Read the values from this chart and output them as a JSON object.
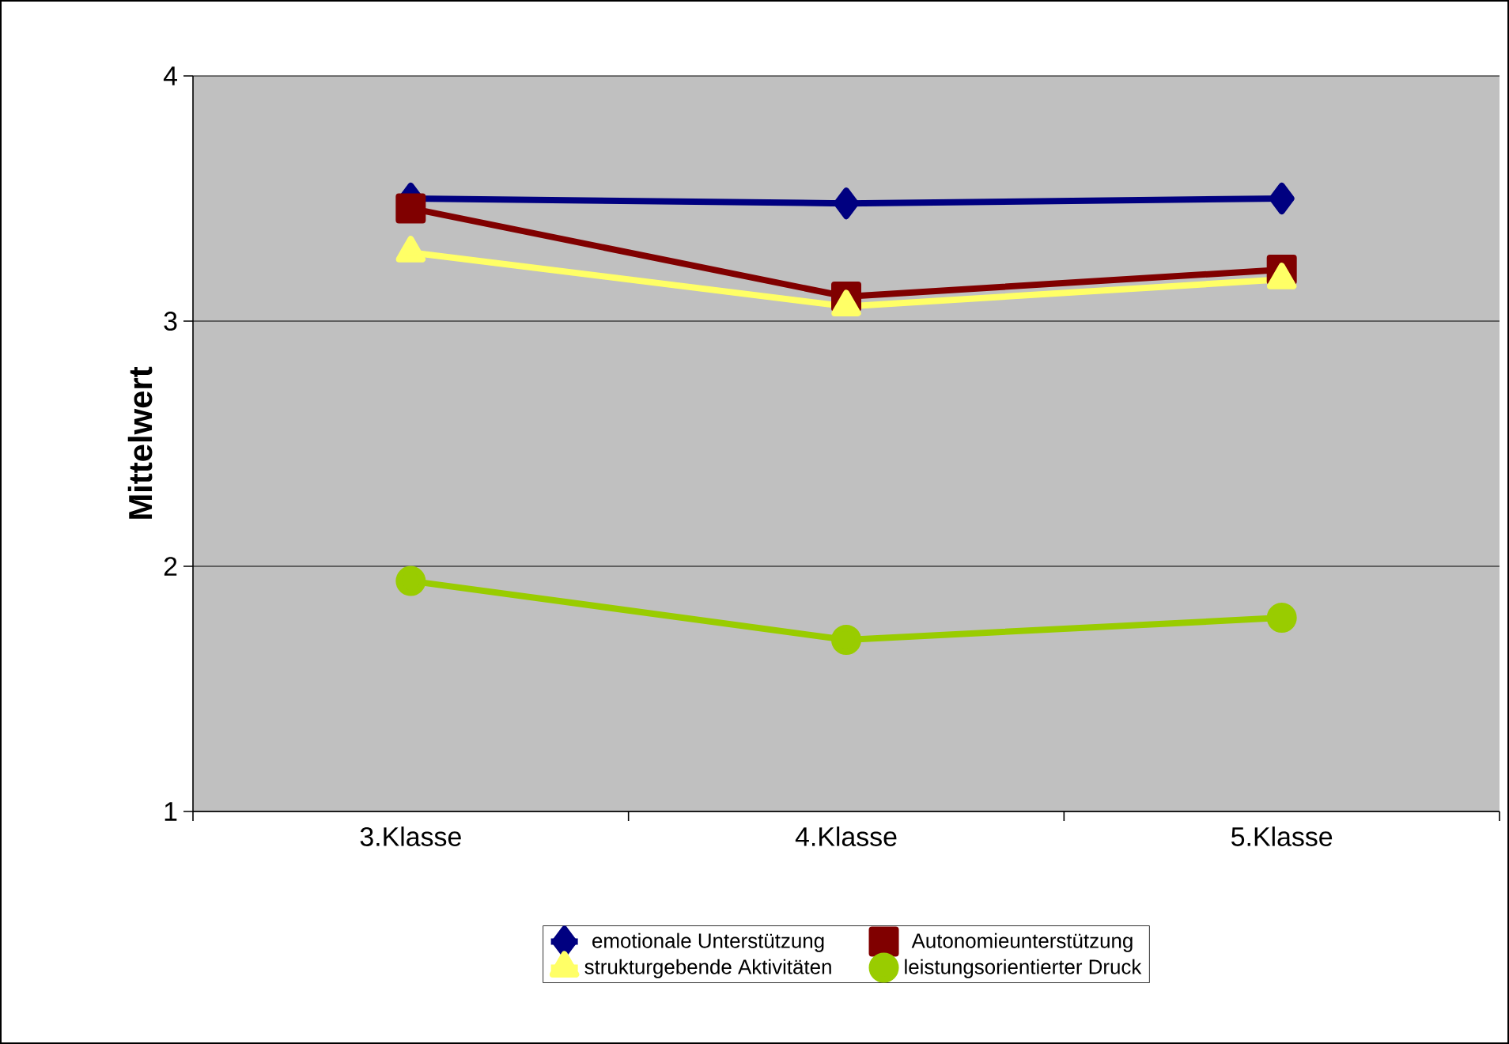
{
  "chart_data": {
    "type": "line",
    "ylabel": "Mittelwert",
    "categories": [
      "3.Klasse",
      "4.Klasse",
      "5.Klasse"
    ],
    "ylim": [
      1,
      4
    ],
    "yticks": [
      1,
      2,
      3,
      4
    ],
    "grid": "y",
    "legend": "bottom",
    "line_style": "solid",
    "series": [
      {
        "name": "emotionale Unterstützung",
        "color": "#000080",
        "marker": "diamond",
        "values": [
          3.5,
          3.48,
          3.5
        ]
      },
      {
        "name": "Autonomieunterstützung",
        "color": "#800000",
        "marker": "square",
        "values": [
          3.46,
          3.1,
          3.21
        ]
      },
      {
        "name": "strukturgebende Aktivitäten",
        "color": "#ffff66",
        "marker": "triangle",
        "values": [
          3.28,
          3.06,
          3.17
        ]
      },
      {
        "name": "leistungsorientierter Druck",
        "color": "#99cc00",
        "marker": "circle",
        "values": [
          1.94,
          1.7,
          1.79
        ]
      }
    ]
  }
}
